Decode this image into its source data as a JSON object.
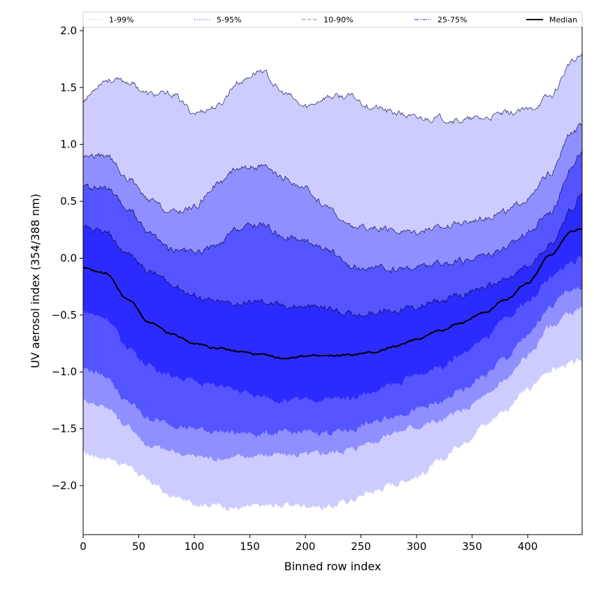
{
  "chart_data": {
    "type": "area",
    "title": "",
    "xlabel": "Binned row index",
    "ylabel": "UV aerosol index (354/388 nm)",
    "xlim": [
      0,
      449
    ],
    "ylim": [
      -2.43,
      2.03
    ],
    "xticks": [
      0,
      50,
      100,
      150,
      200,
      250,
      300,
      350,
      400
    ],
    "yticks": [
      -2.0,
      -1.5,
      -1.0,
      -0.5,
      0.0,
      0.5,
      1.0,
      1.5,
      2.0
    ],
    "ytick_labels": [
      "−2.0",
      "−1.5",
      "−1.0",
      "−0.5",
      "0.0",
      "0.5",
      "1.0",
      "1.5",
      "2.0"
    ],
    "grid": false,
    "legend_position": "top",
    "legend": [
      {
        "label": "1-99%",
        "style": "dotted",
        "color": "#ccccff"
      },
      {
        "label": "5-95%",
        "style": "dotted",
        "color": "#8080c0"
      },
      {
        "label": "10-90%",
        "style": "dashed",
        "color": "#8f8fff"
      },
      {
        "label": "25-75%",
        "style": "dashdot",
        "color": "#5050ff"
      },
      {
        "label": "Median",
        "style": "solid",
        "color": "#000000"
      }
    ],
    "x": [
      0,
      20,
      40,
      60,
      80,
      100,
      120,
      140,
      160,
      180,
      200,
      220,
      240,
      260,
      280,
      300,
      320,
      340,
      360,
      380,
      400,
      420,
      440,
      449
    ],
    "bands": [
      {
        "name": "1-99%",
        "color": "#ccccff",
        "lower": [
          -1.72,
          -1.75,
          -1.82,
          -1.97,
          -2.1,
          -2.15,
          -2.17,
          -2.2,
          -2.18,
          -2.17,
          -2.17,
          -2.19,
          -2.13,
          -2.05,
          -1.98,
          -1.92,
          -1.8,
          -1.63,
          -1.47,
          -1.33,
          -1.16,
          -0.98,
          -0.93,
          -0.9
        ],
        "upper": [
          1.4,
          1.57,
          1.55,
          1.44,
          1.44,
          1.28,
          1.33,
          1.55,
          1.65,
          1.45,
          1.33,
          1.42,
          1.42,
          1.33,
          1.28,
          1.23,
          1.23,
          1.21,
          1.23,
          1.27,
          1.3,
          1.42,
          1.72,
          1.78
        ]
      },
      {
        "name": "5-95%",
        "color": "#8f8fff",
        "lower": [
          -1.25,
          -1.3,
          -1.48,
          -1.65,
          -1.7,
          -1.74,
          -1.76,
          -1.75,
          -1.73,
          -1.73,
          -1.73,
          -1.71,
          -1.68,
          -1.61,
          -1.53,
          -1.48,
          -1.43,
          -1.35,
          -1.23,
          -1.07,
          -0.86,
          -0.6,
          -0.48,
          -0.45
        ],
        "upper": [
          0.9,
          0.9,
          0.7,
          0.5,
          0.4,
          0.45,
          0.65,
          0.8,
          0.8,
          0.7,
          0.6,
          0.45,
          0.28,
          0.26,
          0.24,
          0.24,
          0.27,
          0.31,
          0.36,
          0.41,
          0.52,
          0.74,
          1.1,
          1.17
        ]
      },
      {
        "name": "10-90%",
        "color": "#5555ff",
        "lower": [
          -0.97,
          -1.03,
          -1.27,
          -1.41,
          -1.46,
          -1.5,
          -1.52,
          -1.54,
          -1.54,
          -1.54,
          -1.53,
          -1.53,
          -1.51,
          -1.45,
          -1.38,
          -1.33,
          -1.28,
          -1.17,
          -1.04,
          -0.88,
          -0.69,
          -0.42,
          -0.27,
          -0.25
        ],
        "upper": [
          0.63,
          0.61,
          0.43,
          0.22,
          0.08,
          0.05,
          0.1,
          0.26,
          0.3,
          0.19,
          0.15,
          0.08,
          -0.08,
          -0.09,
          -0.1,
          -0.08,
          -0.05,
          -0.03,
          0.03,
          0.1,
          0.22,
          0.41,
          0.8,
          0.93
        ]
      },
      {
        "name": "25-75%",
        "color": "#2b2bff",
        "lower": [
          -0.47,
          -0.52,
          -0.78,
          -0.95,
          -1.03,
          -1.08,
          -1.12,
          -1.17,
          -1.22,
          -1.25,
          -1.25,
          -1.24,
          -1.22,
          -1.18,
          -1.11,
          -1.03,
          -0.95,
          -0.85,
          -0.72,
          -0.55,
          -0.38,
          -0.18,
          -0.03,
          0.0
        ],
        "upper": [
          0.26,
          0.22,
          0.04,
          -0.12,
          -0.23,
          -0.33,
          -0.39,
          -0.4,
          -0.38,
          -0.42,
          -0.43,
          -0.44,
          -0.49,
          -0.48,
          -0.46,
          -0.43,
          -0.38,
          -0.33,
          -0.26,
          -0.19,
          -0.08,
          0.12,
          0.44,
          0.57
        ]
      }
    ],
    "series": [
      {
        "name": "Median",
        "color": "#000000",
        "values": [
          -0.09,
          -0.13,
          -0.36,
          -0.57,
          -0.67,
          -0.75,
          -0.79,
          -0.82,
          -0.85,
          -0.88,
          -0.86,
          -0.86,
          -0.85,
          -0.83,
          -0.78,
          -0.71,
          -0.64,
          -0.57,
          -0.48,
          -0.37,
          -0.22,
          0.03,
          0.24,
          0.26
        ]
      }
    ]
  }
}
